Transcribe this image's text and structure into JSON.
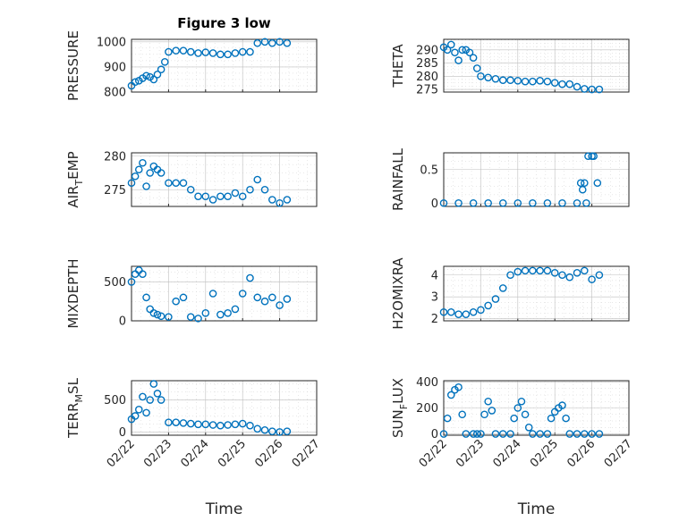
{
  "figure": {
    "title": "Figure 3 low",
    "marker_color": "#0072BD"
  },
  "chart_data": [
    {
      "type": "scatter",
      "title": "Figure 3 low",
      "ylabel": "PRESSURE",
      "xlim": [
        "02/22",
        "02/27"
      ],
      "xticks": [
        "02/22",
        "02/23",
        "02/24",
        "02/25",
        "02/26",
        "02/27"
      ],
      "ylim": [
        800,
        1010
      ],
      "yticks": [
        800,
        900,
        1000
      ],
      "grid": true,
      "show_xticklabels": false,
      "x": [
        22.0,
        22.1,
        22.2,
        22.3,
        22.4,
        22.5,
        22.6,
        22.7,
        22.8,
        22.9,
        23.0,
        23.2,
        23.4,
        23.6,
        23.8,
        24.0,
        24.2,
        24.4,
        24.6,
        24.8,
        25.0,
        25.2,
        25.4,
        25.6,
        25.8,
        26.0,
        26.2
      ],
      "y": [
        825,
        840,
        845,
        855,
        865,
        860,
        850,
        870,
        890,
        920,
        960,
        965,
        965,
        960,
        955,
        958,
        955,
        950,
        950,
        955,
        960,
        960,
        995,
        1000,
        995,
        1000,
        995
      ]
    },
    {
      "type": "scatter",
      "title": "",
      "ylabel": "THETA",
      "xlim": [
        "02/22",
        "02/27"
      ],
      "xticks": [
        "02/22",
        "02/23",
        "02/24",
        "02/25",
        "02/26",
        "02/27"
      ],
      "ylim": [
        274,
        294
      ],
      "yticks": [
        275,
        280,
        285,
        290
      ],
      "grid": true,
      "show_xticklabels": false,
      "x": [
        22.0,
        22.1,
        22.2,
        22.3,
        22.4,
        22.5,
        22.6,
        22.7,
        22.8,
        22.9,
        23.0,
        23.2,
        23.4,
        23.6,
        23.8,
        24.0,
        24.2,
        24.4,
        24.6,
        24.8,
        25.0,
        25.2,
        25.4,
        25.6,
        25.8,
        26.0,
        26.2
      ],
      "y": [
        291,
        290,
        292,
        289,
        286,
        290,
        290,
        289,
        287,
        283,
        280,
        279.5,
        279,
        278.5,
        278.5,
        278.3,
        278,
        278,
        278.3,
        278,
        277.5,
        277,
        277,
        276,
        275.2,
        275,
        275
      ]
    },
    {
      "type": "scatter",
      "title": "",
      "ylabel": "AIR_TEMP",
      "xlim": [
        "02/22",
        "02/27"
      ],
      "xticks": [
        "02/22",
        "02/23",
        "02/24",
        "02/25",
        "02/26",
        "02/27"
      ],
      "ylim": [
        272.5,
        280.5
      ],
      "yticks": [
        275,
        280
      ],
      "grid": true,
      "show_xticklabels": false,
      "x": [
        22.0,
        22.1,
        22.2,
        22.3,
        22.4,
        22.5,
        22.6,
        22.7,
        22.8,
        23.0,
        23.2,
        23.4,
        23.6,
        23.8,
        24.0,
        24.2,
        24.4,
        24.6,
        24.8,
        25.0,
        25.2,
        25.4,
        25.6,
        25.8,
        26.0,
        26.2
      ],
      "y": [
        276,
        277,
        278,
        279,
        275.5,
        277.5,
        278.5,
        278,
        277.5,
        276,
        276,
        276,
        275,
        274,
        274,
        273.5,
        274,
        274,
        274.5,
        274,
        275,
        276.5,
        275,
        273.5,
        273,
        273.5
      ]
    },
    {
      "type": "scatter",
      "title": "",
      "ylabel": "RAINFALL",
      "xlim": [
        "02/22",
        "02/27"
      ],
      "xticks": [
        "02/22",
        "02/23",
        "02/24",
        "02/25",
        "02/26",
        "02/27"
      ],
      "ylim": [
        -0.05,
        0.75
      ],
      "yticks": [
        0,
        0.5
      ],
      "grid": true,
      "show_xticklabels": false,
      "x": [
        22.0,
        22.4,
        22.8,
        23.2,
        23.6,
        24.0,
        24.4,
        24.8,
        25.2,
        25.6,
        25.7,
        25.75,
        25.8,
        25.85,
        25.9,
        26.0,
        26.05,
        26.15
      ],
      "y": [
        0,
        0,
        0,
        0,
        0,
        0,
        0,
        0,
        0,
        0,
        0.3,
        0.2,
        0.3,
        0,
        0.7,
        0.7,
        0.7,
        0.3
      ]
    },
    {
      "type": "scatter",
      "title": "",
      "ylabel": "MIXDEPTH",
      "xlim": [
        "02/22",
        "02/27"
      ],
      "xticks": [
        "02/22",
        "02/23",
        "02/24",
        "02/25",
        "02/26",
        "02/27"
      ],
      "ylim": [
        0,
        700
      ],
      "yticks": [
        0,
        500
      ],
      "grid": true,
      "show_xticklabels": false,
      "x": [
        22.0,
        22.1,
        22.2,
        22.3,
        22.4,
        22.5,
        22.6,
        22.7,
        22.8,
        23.0,
        23.2,
        23.4,
        23.6,
        23.8,
        24.0,
        24.2,
        24.4,
        24.6,
        24.8,
        25.0,
        25.2,
        25.4,
        25.6,
        25.8,
        26.0,
        26.2
      ],
      "y": [
        500,
        600,
        650,
        600,
        300,
        150,
        100,
        80,
        60,
        50,
        250,
        300,
        50,
        30,
        100,
        350,
        80,
        100,
        150,
        350,
        550,
        300,
        250,
        300,
        200,
        280
      ]
    },
    {
      "type": "scatter",
      "title": "",
      "ylabel": "H2OMIXRA",
      "xlim": [
        "02/22",
        "02/27"
      ],
      "xticks": [
        "02/22",
        "02/23",
        "02/24",
        "02/25",
        "02/26",
        "02/27"
      ],
      "ylim": [
        1.9,
        4.4
      ],
      "yticks": [
        2,
        3,
        4
      ],
      "grid": true,
      "show_xticklabels": false,
      "x": [
        22.0,
        22.2,
        22.4,
        22.6,
        22.8,
        23.0,
        23.2,
        23.4,
        23.6,
        23.8,
        24.0,
        24.2,
        24.4,
        24.6,
        24.8,
        25.0,
        25.2,
        25.4,
        25.6,
        25.8,
        26.0,
        26.2
      ],
      "y": [
        2.3,
        2.3,
        2.2,
        2.2,
        2.3,
        2.4,
        2.6,
        2.9,
        3.4,
        4.0,
        4.15,
        4.2,
        4.2,
        4.2,
        4.2,
        4.1,
        4.0,
        3.9,
        4.1,
        4.2,
        3.8,
        4.0
      ]
    },
    {
      "type": "scatter",
      "title": "",
      "ylabel": "TERR_MSL",
      "xlim": [
        "02/22",
        "02/27"
      ],
      "xticks": [
        "02/22",
        "02/23",
        "02/24",
        "02/25",
        "02/26",
        "02/27"
      ],
      "ylim": [
        -50,
        800
      ],
      "yticks": [
        0,
        500
      ],
      "grid": true,
      "show_xticklabels": true,
      "x": [
        22.0,
        22.1,
        22.2,
        22.3,
        22.4,
        22.5,
        22.6,
        22.7,
        22.8,
        23.0,
        23.2,
        23.4,
        23.6,
        23.8,
        24.0,
        24.2,
        24.4,
        24.6,
        24.8,
        25.0,
        25.2,
        25.4,
        25.6,
        25.8,
        26.0,
        26.2
      ],
      "y": [
        200,
        250,
        350,
        550,
        300,
        500,
        750,
        600,
        500,
        150,
        150,
        140,
        130,
        120,
        120,
        110,
        100,
        110,
        120,
        130,
        100,
        50,
        30,
        10,
        0,
        10
      ]
    },
    {
      "type": "scatter",
      "title": "",
      "ylabel": "SUN_FLUX",
      "xlim": [
        "02/22",
        "02/27"
      ],
      "xticks": [
        "02/22",
        "02/23",
        "02/24",
        "02/25",
        "02/26",
        "02/27"
      ],
      "ylim": [
        -10,
        410
      ],
      "yticks": [
        0,
        200,
        400
      ],
      "grid": true,
      "show_xticklabels": true,
      "x": [
        22.0,
        22.1,
        22.2,
        22.3,
        22.4,
        22.5,
        22.6,
        22.8,
        22.9,
        23.0,
        23.1,
        23.2,
        23.3,
        23.4,
        23.6,
        23.8,
        23.9,
        24.0,
        24.1,
        24.2,
        24.3,
        24.4,
        24.6,
        24.8,
        24.9,
        25.0,
        25.1,
        25.2,
        25.3,
        25.4,
        25.6,
        25.8,
        26.0,
        26.2
      ],
      "y": [
        0,
        120,
        300,
        340,
        360,
        150,
        0,
        0,
        0,
        0,
        150,
        250,
        180,
        0,
        0,
        0,
        120,
        200,
        250,
        150,
        50,
        0,
        0,
        0,
        120,
        170,
        200,
        220,
        120,
        0,
        0,
        0,
        0,
        0
      ]
    }
  ],
  "panel_ylabels": [
    {
      "main": "PRESSURE",
      "sub": "",
      "tail": ""
    },
    {
      "main": "THETA",
      "sub": "",
      "tail": ""
    },
    {
      "main": "AIR",
      "sub": "T",
      "tail": "EMP"
    },
    {
      "main": "RAINFALL",
      "sub": "",
      "tail": ""
    },
    {
      "main": "MIXDEPTH",
      "sub": "",
      "tail": ""
    },
    {
      "main": "H2OMIXRA",
      "sub": "",
      "tail": ""
    },
    {
      "main": "TERR",
      "sub": "M",
      "tail": "SL"
    },
    {
      "main": "SUN",
      "sub": "F",
      "tail": "LUX"
    }
  ],
  "xlabel": "Time"
}
